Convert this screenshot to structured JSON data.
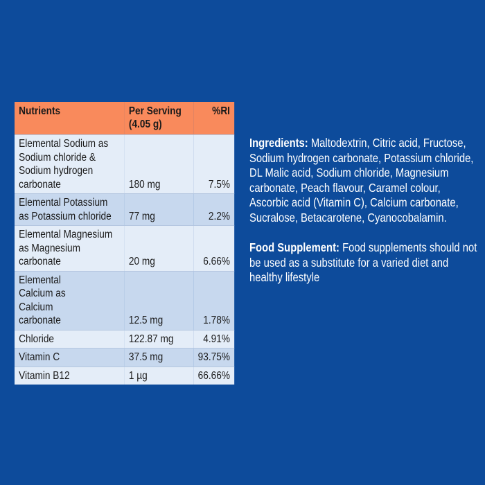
{
  "table": {
    "headers": {
      "nutrients": "Nutrients",
      "per_serving": "Per Serving (4.05 g)",
      "ri": "%RI"
    },
    "rows": [
      {
        "nutrient": "Elemental Sodium as Sodium chloride & Sodium hydrogen carbonate",
        "amount": "180 mg",
        "ri": "7.5%"
      },
      {
        "nutrient": "Elemental Potassium as Potassium chloride",
        "amount": "77 mg",
        "ri": "2.2%"
      },
      {
        "nutrient": "Elemental Magnesium as Magnesium carbonate",
        "amount": "20 mg",
        "ri": "6.66%"
      },
      {
        "nutrient": "Elemental Calcium as Calcium carbonate",
        "amount": "12.5 mg",
        "ri": "1.78%"
      },
      {
        "nutrient": "Chloride",
        "amount": "122.87 mg",
        "ri": "4.91%"
      },
      {
        "nutrient": "Vitamin C",
        "amount": "37.5 mg",
        "ri": "93.75%"
      },
      {
        "nutrient": "Vitamin B12",
        "amount": "1 µg",
        "ri": "66.66%"
      }
    ]
  },
  "ingredients": {
    "label": "Ingredients:",
    "text": " Maltodextrin, Citric acid, Fructose, Sodium hydrogen carbonate, Potassium chloride, DL Malic acid, Sodium chloride, Magnesium carbonate, Peach flavour, Caramel colour, Ascorbic acid (Vitamin C), Calcium carbonate, Sucralose, Betacarotene, Cyanocobalamin."
  },
  "supplement": {
    "label": "Food Supplement:",
    "text": " Food supplements should not be used as a substitute for a varied diet and healthy lifestyle"
  },
  "colors": {
    "background": "#0d4b9b",
    "header": "#f98a5c",
    "row_light": "#e4edf8",
    "row_dark": "#c7d8ee"
  }
}
